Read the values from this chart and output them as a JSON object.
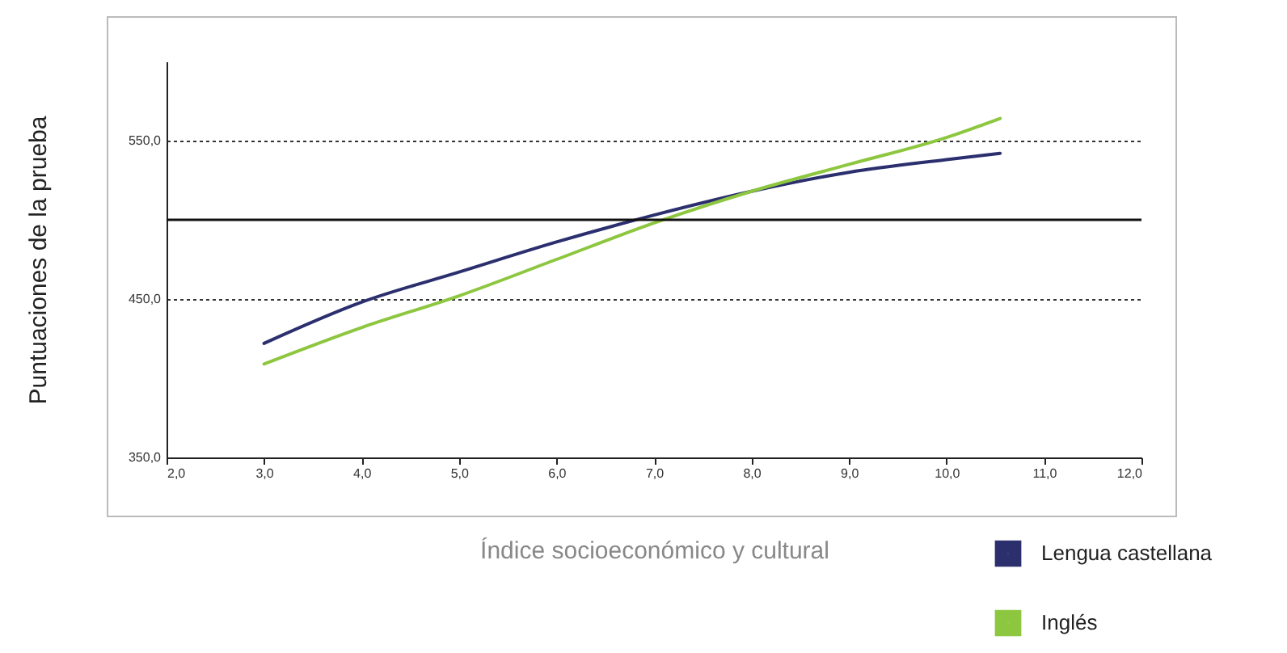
{
  "chart_data": {
    "type": "line",
    "xlabel": "Índice socioeconómico y cultural",
    "ylabel": "Puntuaciones de la prueba",
    "x": [
      3,
      4,
      5,
      6,
      7,
      8,
      9,
      10,
      10.55
    ],
    "series": [
      {
        "name": "Lengua castellana",
        "color": "#2b2f6e",
        "values": [
          422,
          448,
          467,
          486,
          503,
          518,
          530,
          538,
          542
        ]
      },
      {
        "name": "Inglés",
        "color": "#8dc63f",
        "values": [
          409,
          432,
          452,
          475,
          498,
          518,
          535,
          552,
          564
        ]
      }
    ],
    "xlim": [
      2,
      12
    ],
    "xticks": [
      {
        "value": 2,
        "label": "2,0"
      },
      {
        "value": 3,
        "label": "3,0"
      },
      {
        "value": 4,
        "label": "4,0"
      },
      {
        "value": 5,
        "label": "5,0"
      },
      {
        "value": 6,
        "label": "6,0"
      },
      {
        "value": 7,
        "label": "7,0"
      },
      {
        "value": 8,
        "label": "8,0"
      },
      {
        "value": 9,
        "label": "9,0"
      },
      {
        "value": 10,
        "label": "10,0"
      },
      {
        "value": 11,
        "label": "11,0"
      },
      {
        "value": 12,
        "label": "12,0"
      }
    ],
    "ylim": [
      350,
      600
    ],
    "yticks": [
      {
        "value": 350,
        "label": "350,0"
      },
      {
        "value": 450,
        "label": "450,0"
      },
      {
        "value": 550,
        "label": "550,0"
      }
    ],
    "ref_lines": [
      {
        "axis": "y",
        "value": 500
      }
    ],
    "grid": "y",
    "legend": "bottom right",
    "marker": "none",
    "line_style": "solid"
  }
}
